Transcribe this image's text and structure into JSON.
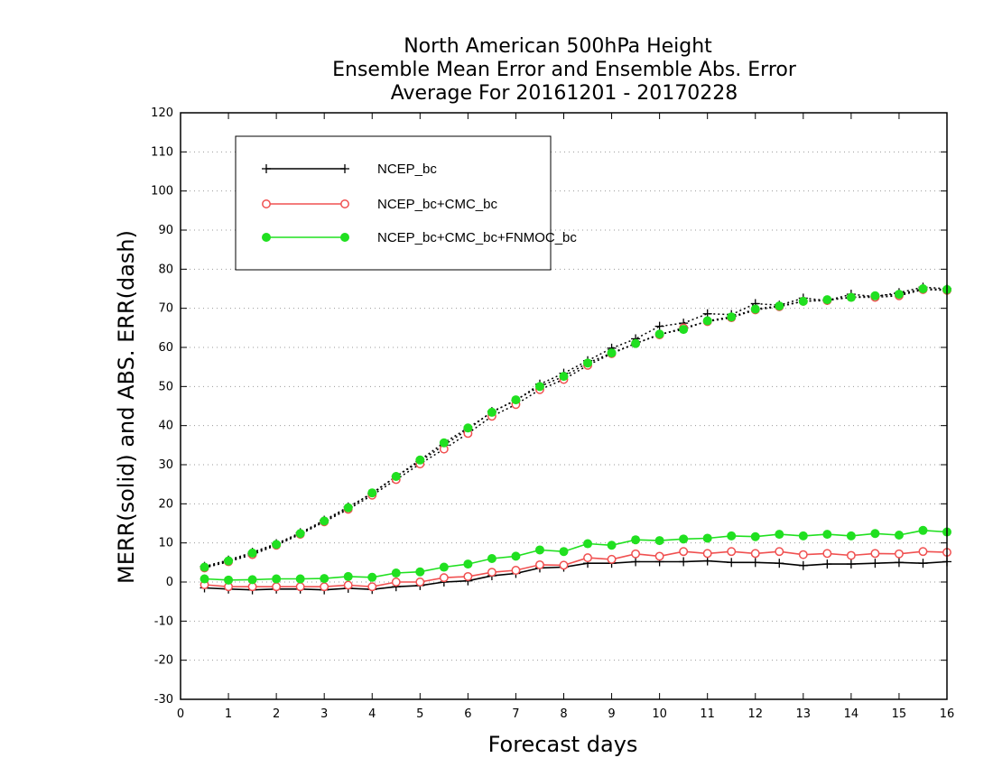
{
  "chart_data": {
    "type": "line",
    "title": [
      "North American 500hPa Height",
      "Ensemble Mean Error and Ensemble Abs. Error",
      "Average For 20161201 - 20170228"
    ],
    "xlabel": "Forecast days",
    "ylabel": "MERR(solid) and ABS. ERR(dash)",
    "xlim": [
      0,
      16
    ],
    "ylim": [
      -30,
      120
    ],
    "xticks": [
      "0",
      "1",
      "2",
      "3",
      "4",
      "5",
      "6",
      "7",
      "8",
      "9",
      "10",
      "11",
      "12",
      "13",
      "14",
      "15",
      "16"
    ],
    "yticks": [
      "-30",
      "-20",
      "-10",
      "0",
      "10",
      "20",
      "30",
      "40",
      "50",
      "60",
      "70",
      "80",
      "90",
      "100",
      "110",
      "120"
    ],
    "grid": "horizontal dotted",
    "legend_placement": "top-left",
    "x": [
      0.5,
      1,
      1.5,
      2,
      2.5,
      3,
      3.5,
      4,
      4.5,
      5,
      5.5,
      6,
      6.5,
      7,
      7.5,
      8,
      8.5,
      9,
      9.5,
      10,
      10.5,
      11,
      11.5,
      12,
      12.5,
      13,
      13.5,
      14,
      14.5,
      15,
      15.5,
      16
    ],
    "series": [
      {
        "name": "NCEP_bc",
        "color": "#000000",
        "marker": "plus",
        "merr": [
          -1.5,
          -1.8,
          -2.0,
          -1.8,
          -1.8,
          -2.0,
          -1.6,
          -1.9,
          -1.2,
          -0.9,
          0.0,
          0.3,
          1.6,
          2.2,
          3.6,
          3.8,
          4.8,
          4.8,
          5.2,
          5.2,
          5.2,
          5.4,
          5.0,
          5.0,
          4.8,
          4.2,
          4.6,
          4.6,
          4.8,
          5.0,
          4.8,
          5.2
        ],
        "abs_err": [
          4.0,
          5.6,
          7.6,
          9.8,
          12.6,
          15.8,
          19.2,
          22.6,
          27.0,
          30.8,
          35.0,
          39.0,
          43.6,
          46.4,
          50.6,
          53.4,
          56.6,
          59.8,
          62.2,
          65.4,
          66.2,
          68.6,
          68.4,
          71.2,
          70.8,
          72.6,
          72.0,
          73.6,
          73.0,
          74.0,
          75.4,
          75.0
        ]
      },
      {
        "name": "NCEP_bc+CMC_bc",
        "color": "#f05050",
        "marker": "open-circle",
        "merr": [
          -0.7,
          -1.2,
          -1.2,
          -1.2,
          -1.2,
          -1.2,
          -0.8,
          -1.2,
          0.0,
          0.0,
          1.1,
          1.4,
          2.5,
          3.0,
          4.4,
          4.3,
          6.2,
          5.8,
          7.2,
          6.6,
          7.8,
          7.3,
          7.8,
          7.3,
          7.8,
          7.0,
          7.3,
          6.8,
          7.3,
          7.2,
          7.8,
          7.6
        ],
        "abs_err": [
          3.6,
          5.2,
          7.0,
          9.4,
          12.2,
          15.4,
          18.6,
          22.2,
          26.2,
          30.2,
          34.0,
          38.0,
          42.4,
          45.4,
          49.2,
          51.8,
          55.4,
          58.4,
          61.0,
          63.2,
          65.0,
          66.6,
          67.6,
          69.6,
          70.4,
          71.8,
          72.0,
          72.8,
          72.8,
          73.2,
          74.8,
          74.6
        ]
      },
      {
        "name": "NCEP_bc+CMC_bc+FNMOC_bc",
        "color": "#20e020",
        "marker": "filled-circle",
        "merr": [
          0.8,
          0.5,
          0.6,
          0.8,
          0.8,
          0.9,
          1.4,
          1.2,
          2.3,
          2.6,
          3.8,
          4.6,
          6.0,
          6.6,
          8.2,
          7.8,
          9.8,
          9.4,
          10.8,
          10.6,
          11.0,
          11.2,
          11.8,
          11.6,
          12.2,
          11.8,
          12.2,
          11.8,
          12.4,
          12.0,
          13.2,
          12.8
        ],
        "abs_err": [
          3.8,
          5.4,
          7.4,
          9.6,
          12.4,
          15.6,
          19.0,
          22.8,
          27.0,
          31.2,
          35.6,
          39.4,
          43.4,
          46.6,
          50.0,
          52.6,
          56.0,
          58.6,
          61.0,
          63.4,
          64.6,
          66.8,
          67.8,
          69.8,
          70.6,
          71.8,
          72.2,
          72.8,
          73.2,
          73.6,
          75.0,
          74.8
        ]
      }
    ]
  }
}
